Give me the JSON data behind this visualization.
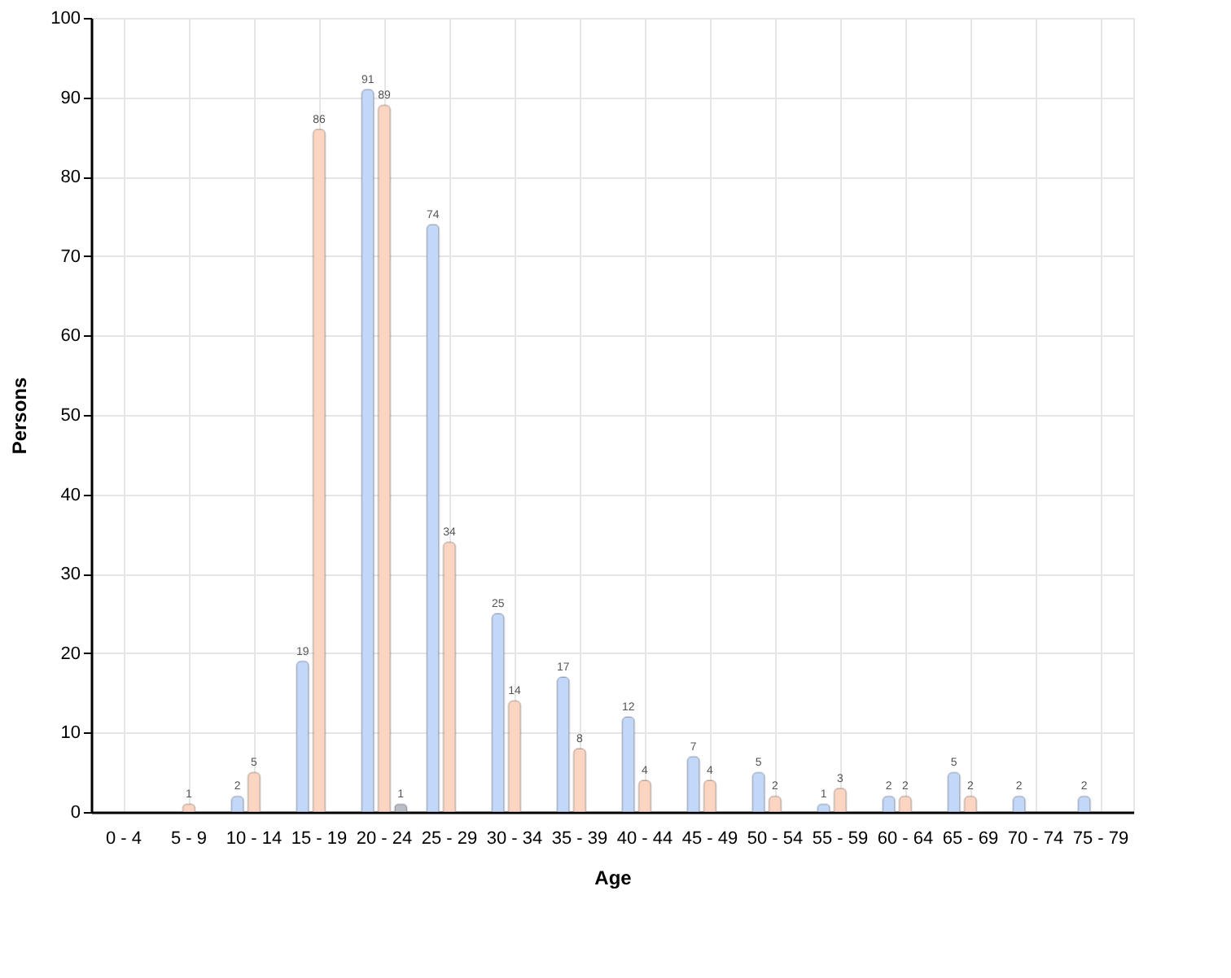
{
  "chart_data": {
    "type": "bar",
    "xlabel": "Age",
    "ylabel": "Persons",
    "categories": [
      "0 - 4",
      "5 - 9",
      "10 - 14",
      "15 - 19",
      "20 - 24",
      "25 - 29",
      "30 - 34",
      "35 - 39",
      "40 - 44",
      "45 - 49",
      "50 - 54",
      "55 - 59",
      "60 - 64",
      "65 - 69",
      "70 - 74",
      "75 - 79"
    ],
    "series": [
      {
        "color": "#c3d7f8",
        "values": [
          null,
          null,
          2,
          19,
          91,
          74,
          25,
          17,
          12,
          7,
          5,
          1,
          2,
          5,
          2,
          2
        ],
        "value_labels": [
          null,
          null,
          "2",
          "19",
          "91",
          "74",
          "25",
          "17",
          "12",
          "7",
          "5",
          "1",
          "2",
          "5",
          "2",
          "2"
        ]
      },
      {
        "color": "#fbd5c1",
        "values": [
          null,
          1,
          5,
          86,
          89,
          34,
          14,
          8,
          4,
          4,
          2,
          3,
          2,
          2,
          null,
          null
        ],
        "value_labels": [
          null,
          "1",
          "5",
          "86",
          "89",
          "34",
          "14",
          "8",
          "4",
          "4",
          "2",
          "3",
          "2",
          "2",
          null,
          null
        ]
      },
      {
        "color": "#b9bdc6",
        "values": [
          null,
          null,
          null,
          null,
          1,
          null,
          null,
          null,
          null,
          null,
          null,
          null,
          null,
          null,
          null,
          null
        ],
        "value_labels": [
          null,
          null,
          null,
          null,
          "1",
          null,
          null,
          null,
          null,
          null,
          null,
          null,
          null,
          null,
          null,
          null
        ]
      }
    ],
    "ylim": [
      0,
      100
    ],
    "yticks": [
      0,
      10,
      20,
      30,
      40,
      50,
      60,
      70,
      80,
      90,
      100
    ],
    "grid": true,
    "legend": false
  }
}
